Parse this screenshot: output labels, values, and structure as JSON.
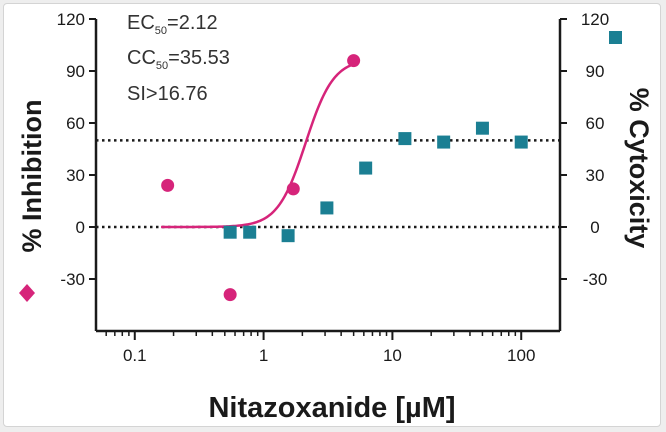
{
  "chart_data": {
    "type": "scatter",
    "xlabel": "Nitazoxanide [µM]",
    "x_scale": "log",
    "xlim": [
      0.05,
      200
    ],
    "x_ticks": [
      "0.1",
      "1",
      "10",
      "100"
    ],
    "x_tick_values": [
      0.1,
      1,
      10,
      100
    ],
    "left_axis": {
      "label": "% Inhibition",
      "ylim": [
        -60,
        120
      ],
      "ticks": [
        -30,
        0,
        30,
        60,
        90,
        120
      ],
      "tick_labels": [
        "-30",
        "0",
        "30",
        "60",
        "90",
        "120"
      ]
    },
    "right_axis": {
      "label": "% Cytoxicity",
      "ylim": [
        -60,
        120
      ],
      "ticks": [
        -30,
        0,
        30,
        60,
        90,
        120
      ],
      "tick_labels": [
        "-30",
        "0",
        "30",
        "60",
        "90",
        "120"
      ]
    },
    "reference_lines": [
      0,
      50
    ],
    "annotations": {
      "ec50_prefix": "EC",
      "ec50_sub": "50",
      "ec50_value": "=2.12",
      "cc50_prefix": "CC",
      "cc50_sub": "50",
      "cc50_value": "=35.53",
      "si": "SI>16.76"
    },
    "series": [
      {
        "axis": "left",
        "marker": "circle",
        "color": "#d6247a",
        "points": [
          {
            "x": 0.18,
            "y": 24
          },
          {
            "x": 0.55,
            "y": -39
          },
          {
            "x": 1.7,
            "y": 22
          },
          {
            "x": 5.0,
            "y": 96
          }
        ],
        "fit": {
          "model": "4PL",
          "bottom": 0,
          "top": 97,
          "ec50": 2.12,
          "hill": 4,
          "x_range": [
            0.16,
            5.0
          ]
        }
      },
      {
        "axis": "right",
        "marker": "square",
        "color": "#1b7f93",
        "points": [
          {
            "x": 0.55,
            "y": -3
          },
          {
            "x": 0.78,
            "y": -3
          },
          {
            "x": 1.55,
            "y": -5
          },
          {
            "x": 3.1,
            "y": 11
          },
          {
            "x": 6.2,
            "y": 34
          },
          {
            "x": 12.5,
            "y": 51
          },
          {
            "x": 25,
            "y": 49
          },
          {
            "x": 50,
            "y": 57
          },
          {
            "x": 100,
            "y": 49
          }
        ]
      }
    ]
  }
}
